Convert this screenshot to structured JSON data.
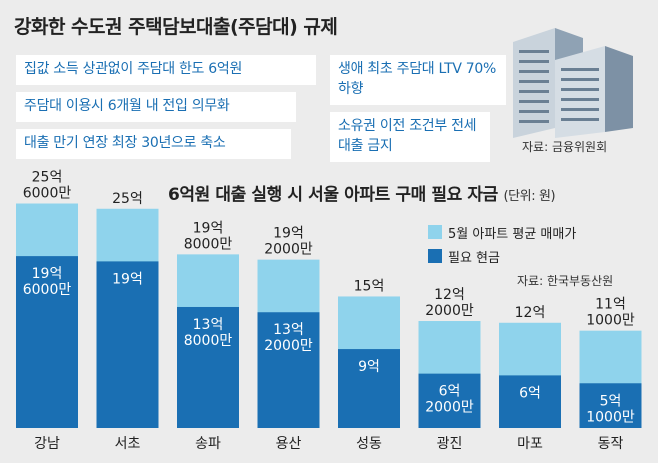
{
  "header": {
    "title": "강화한 수도권 주택담보대출(주담대) 규제",
    "rules": [
      "집값 소득 상관없이 주담대 한도 6억원",
      "주담대 이용시 6개월 내 전입 의무화",
      "대출 만기 연장 최장 30년으로 축소",
      "생애 최초 주담대 LTV 70% 하향",
      "소유권 이전 조건부 전세대출 금지"
    ],
    "source": "자료: 금융위원회"
  },
  "chart_header": {
    "title": "6억원 대출 실행 시 서울 아파트 구매 필요 자금",
    "unit": "(단위: 원)",
    "source": "자료: 한국부동산원"
  },
  "colors": {
    "avg_price": "#8fd3ec",
    "cash_needed": "#1a6fb3"
  },
  "chart_data": {
    "type": "bar",
    "title": "6억원 대출 실행 시 서울 아파트 구매 필요 자금",
    "unit": "억원",
    "categories": [
      "강남",
      "서초",
      "송파",
      "용산",
      "성동",
      "광진",
      "마포",
      "동작"
    ],
    "series": [
      {
        "name": "5월 아파트 평균 매매가",
        "values": [
          25.6,
          25,
          19.8,
          19.2,
          15,
          12.2,
          12,
          11.1
        ],
        "labels": [
          [
            "25억",
            "6000만"
          ],
          [
            "25억"
          ],
          [
            "19억",
            "8000만"
          ],
          [
            "19억",
            "2000만"
          ],
          [
            "15억"
          ],
          [
            "12억",
            "2000만"
          ],
          [
            "12억"
          ],
          [
            "11억",
            "1000만"
          ]
        ]
      },
      {
        "name": "필요 현금",
        "values": [
          19.6,
          19,
          13.8,
          13.2,
          9,
          6.2,
          6,
          5.1
        ],
        "labels": [
          [
            "19억",
            "6000만"
          ],
          [
            "19억"
          ],
          [
            "13억",
            "8000만"
          ],
          [
            "13억",
            "2000만"
          ],
          [
            "9억"
          ],
          [
            "6억",
            "2000만"
          ],
          [
            "6억"
          ],
          [
            "5억",
            "1000만"
          ]
        ]
      }
    ],
    "ylim": [
      0,
      26
    ]
  }
}
